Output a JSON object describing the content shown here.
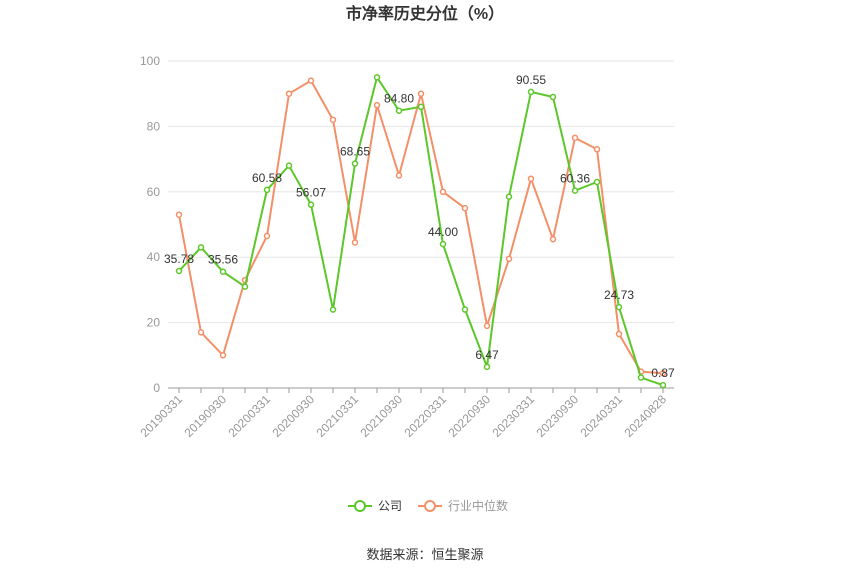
{
  "chart_data": {
    "type": "line",
    "title": "市净率历史分位（%）",
    "categories": [
      "20190331",
      null,
      "20190930",
      null,
      "20200331",
      null,
      "20200930",
      null,
      "20210331",
      null,
      "20210930",
      null,
      "20220331",
      null,
      "20220930",
      null,
      "20230331",
      null,
      "20230930",
      null,
      "20240331",
      null,
      "20240828"
    ],
    "series": [
      {
        "name": "公司",
        "color": "#5cc72a",
        "values": [
          35.78,
          43,
          35.56,
          31,
          60.58,
          68,
          56.07,
          24,
          68.65,
          95,
          84.8,
          86,
          44.0,
          24,
          6.47,
          58.5,
          90.55,
          89,
          60.36,
          63,
          24.73,
          3.2,
          0.87
        ],
        "value_labels": [
          "35.78",
          null,
          "35.56",
          null,
          "60.58",
          null,
          "56.07",
          null,
          "68.65",
          null,
          "84.80",
          null,
          "44.00",
          null,
          "6.47",
          null,
          "90.55",
          null,
          "60.36",
          null,
          "24.73",
          null,
          "0.87"
        ]
      },
      {
        "name": "行业中位数",
        "color": "#f39068",
        "values": [
          53,
          17,
          10,
          33,
          46.5,
          90,
          94,
          82,
          44.5,
          86.5,
          65,
          90,
          60,
          55,
          19,
          39.5,
          64,
          45.5,
          76.5,
          73,
          16.5,
          5,
          4.5
        ]
      }
    ],
    "ylim": [
      0,
      100
    ],
    "yticks": [
      0,
      20,
      40,
      60,
      80,
      100
    ],
    "grid": true,
    "source": "数据来源：恒生聚源"
  }
}
